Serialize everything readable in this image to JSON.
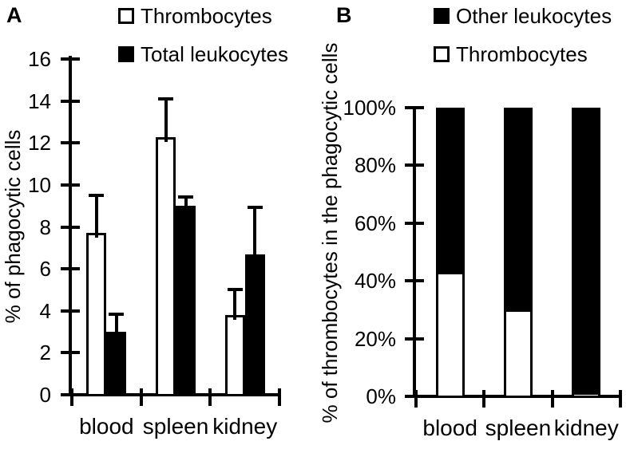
{
  "colors": {
    "foreground": "#000000",
    "background": "#ffffff",
    "bar_fill_open": "#ffffff",
    "bar_fill_solid": "#000000"
  },
  "chart_data": [
    {
      "type": "bar",
      "panel": "A",
      "categories": [
        "blood",
        "spleen",
        "kidney"
      ],
      "series": [
        {
          "name": "Thrombocytes",
          "fill": "white",
          "values": [
            7.7,
            12.3,
            3.8
          ],
          "errors_up": [
            1.9,
            1.9,
            1.3
          ]
        },
        {
          "name": "Total leukocytes",
          "fill": "black",
          "values": [
            3.0,
            9.0,
            6.7
          ],
          "errors_up": [
            0.9,
            0.5,
            2.3
          ]
        }
      ],
      "xlabel": "",
      "ylabel": "% of phagocytic cells",
      "ylim": [
        0,
        16
      ],
      "ytick_step": 2,
      "yticks": [
        "0",
        "2",
        "4",
        "6",
        "8",
        "10",
        "12",
        "14",
        "16"
      ],
      "ytick_suffix": "",
      "grid": false,
      "error_bars": "upper",
      "legend_position": "top"
    },
    {
      "type": "stacked-bar-100",
      "panel": "B",
      "categories": [
        "blood",
        "spleen",
        "kidney"
      ],
      "series": [
        {
          "name": "Thrombocytes",
          "fill": "white",
          "values": [
            43,
            30,
            1.5
          ]
        },
        {
          "name": "Other leukocytes",
          "fill": "black",
          "values": [
            57,
            70,
            98.5
          ]
        }
      ],
      "xlabel": "",
      "ylabel": "% of thrombocytes in the phagocytic cells",
      "ylim": [
        0,
        100
      ],
      "ytick_step": 20,
      "yticks": [
        "0%",
        "20%",
        "40%",
        "60%",
        "80%",
        "100%"
      ],
      "ytick_suffix": "%",
      "grid": false,
      "error_bars": "none",
      "legend_position": "top",
      "legend_order_top_to_bottom": [
        "Other leukocytes",
        "Thrombocytes"
      ]
    }
  ]
}
